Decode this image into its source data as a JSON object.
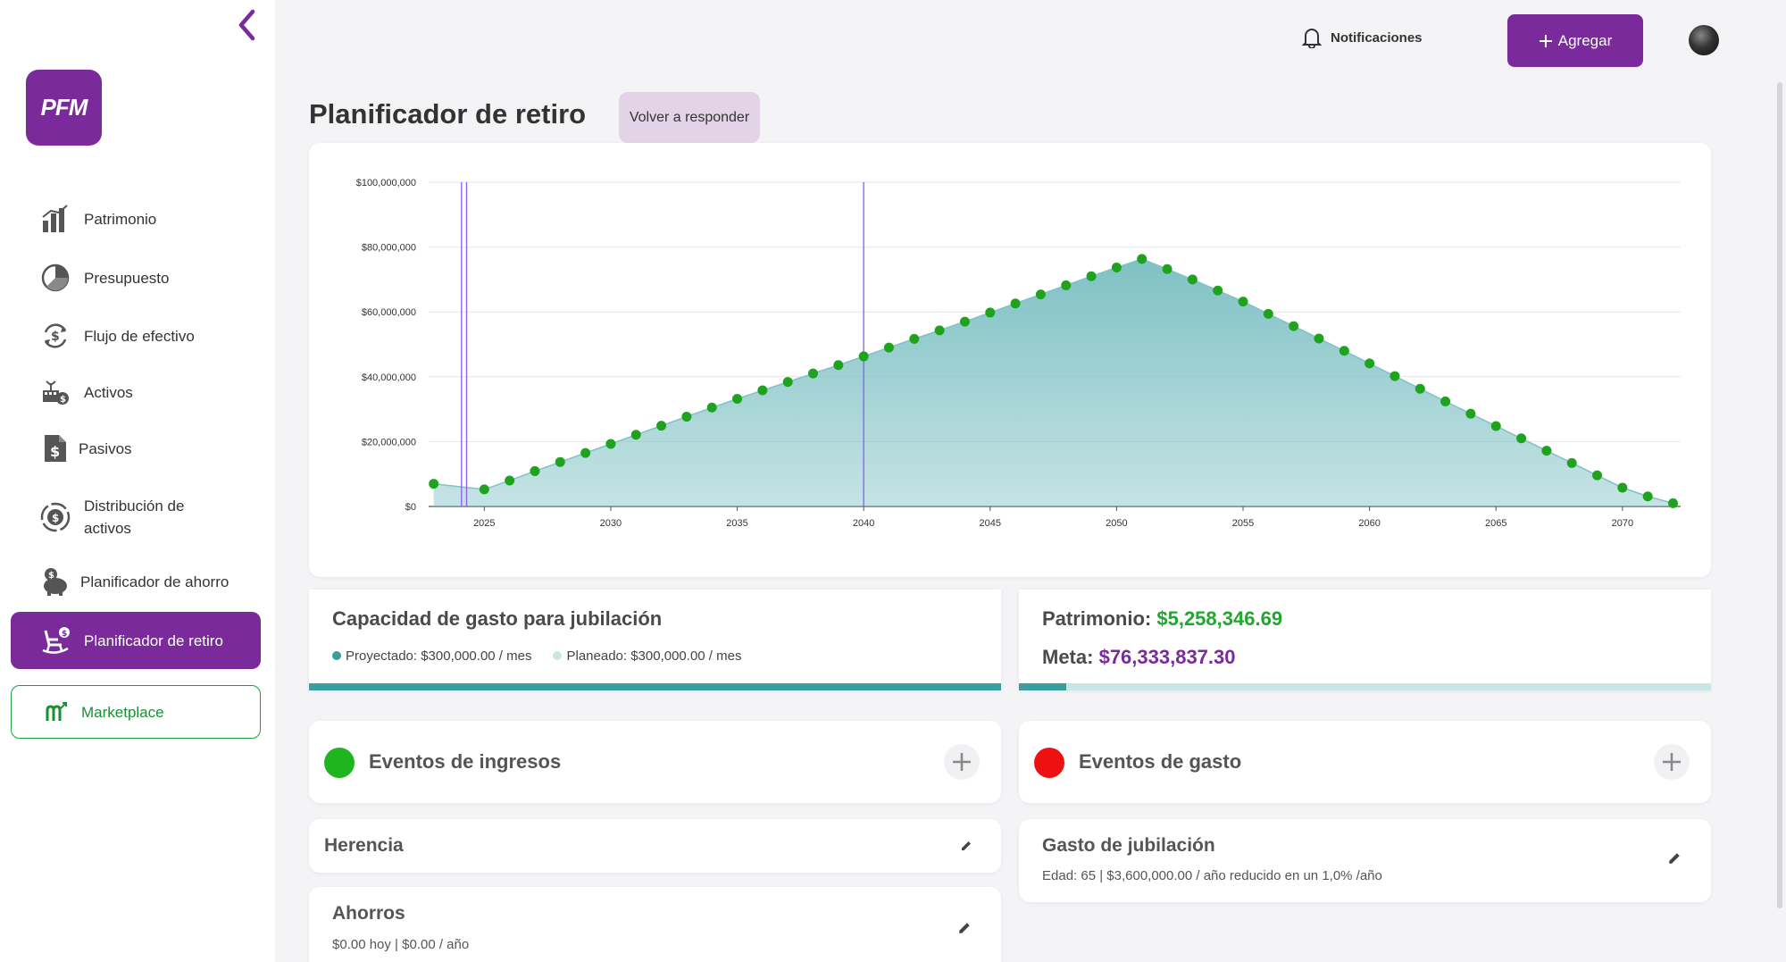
{
  "sidebar": {
    "logo_text": "PFM",
    "items": [
      {
        "label": "Patrimonio",
        "icon": "bar-chart-icon"
      },
      {
        "label": "Presupuesto",
        "icon": "pie-chart-icon"
      },
      {
        "label": "Flujo de efectivo",
        "icon": "cash-flow-icon"
      },
      {
        "label": "Activos",
        "icon": "assets-icon"
      },
      {
        "label": "Pasivos",
        "icon": "liabilities-icon"
      },
      {
        "label": "Distribución de activos",
        "icon": "distribution-icon"
      },
      {
        "label": "Planificador de ahorro",
        "icon": "piggy-bank-icon"
      },
      {
        "label": "Planificador de retiro",
        "icon": "rocking-chair-icon"
      }
    ],
    "marketplace": "Marketplace",
    "active_color": "#7a2a9a"
  },
  "header": {
    "notifications": "Notificaciones",
    "add_label": "Agregar"
  },
  "page": {
    "title": "Planificador de retiro",
    "redo_label": "Volver a responder"
  },
  "chart_data": {
    "type": "area",
    "y_ticks": [
      "$100,000,000",
      "$80,000,000",
      "$60,000,000",
      "$40,000,000",
      "$20,000,000",
      "$0"
    ],
    "x_ticks": [
      "2025",
      "2030",
      "2035",
      "2040",
      "2045",
      "2050",
      "2055",
      "2060",
      "2065",
      "2070"
    ],
    "ylim": [
      0,
      100000000
    ],
    "xlim": [
      2022.8,
      2072.3
    ],
    "markers": [
      2024.1,
      2024.3,
      2040
    ],
    "x": [
      2023,
      2025,
      2026,
      2027,
      2028,
      2029,
      2030,
      2031,
      2032,
      2033,
      2034,
      2035,
      2036,
      2037,
      2038,
      2039,
      2040,
      2041,
      2042,
      2043,
      2044,
      2045,
      2046,
      2047,
      2048,
      2049,
      2050,
      2051,
      2052,
      2053,
      2054,
      2055,
      2056,
      2057,
      2058,
      2059,
      2060,
      2061,
      2062,
      2063,
      2064,
      2065,
      2066,
      2067,
      2068,
      2069,
      2070,
      2071,
      2072
    ],
    "y": [
      7000000,
      5258346,
      8000000,
      10900000,
      13700000,
      16500000,
      19300000,
      22100000,
      24900000,
      27700000,
      30500000,
      33200000,
      35800000,
      38400000,
      41000000,
      43600000,
      46300000,
      49000000,
      51700000,
      54300000,
      57000000,
      59800000,
      62600000,
      65400000,
      68200000,
      71000000,
      73700000,
      76333837,
      73200000,
      70000000,
      66600000,
      63200000,
      59400000,
      55600000,
      51800000,
      48000000,
      44100000,
      40200000,
      36300000,
      32400000,
      28600000,
      24800000,
      21000000,
      17200000,
      13400000,
      9600000,
      5800000,
      3100000,
      1000000
    ],
    "grid": true,
    "fill_color": "#7fc1c4",
    "line_color": "#7fc1c4",
    "point_color": "#1fa31f",
    "marker_color": "#8a5cf0"
  },
  "capacity": {
    "title": "Capacidad de gasto para jubilación",
    "projected": "Proyectado: $300,000.00 / mes",
    "planned": "Planeado: $300,000.00 / mes",
    "projected_color": "#3a9ea0",
    "planned_color": "#c9e6e6",
    "fill": 1.0
  },
  "patrimonio": {
    "label": "Patrimonio:",
    "value": "$5,258,346.69",
    "goal_label": "Meta:",
    "goal_value": "$76,333,837.30",
    "progress": 0.069
  },
  "income_events": {
    "title": "Eventos de ingresos",
    "color": "#1fb51f",
    "items": [
      {
        "title": "Herencia"
      },
      {
        "title": "Ahorros",
        "sub": "$0.00 hoy | $0.00 / año"
      }
    ]
  },
  "expense_events": {
    "title": "Eventos de gasto",
    "color": "#ee1111",
    "items": [
      {
        "title": "Gasto de jubilación",
        "sub": "Edad: 65 | $3,600,000.00 / año reducido en un 1,0% /año"
      }
    ]
  }
}
